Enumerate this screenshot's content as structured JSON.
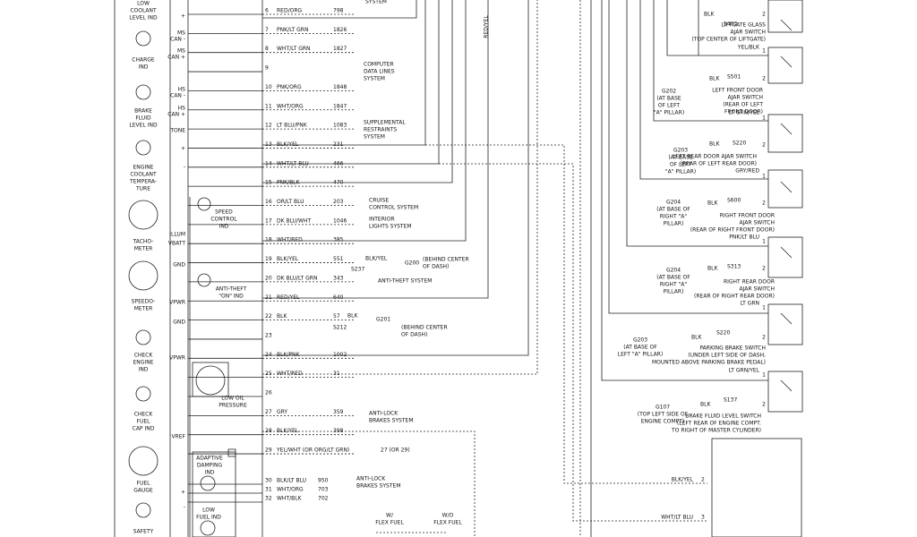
{
  "top_label": "SYSTEM",
  "vertical_label": "RED/YEL",
  "gauges": [
    {
      "lines": [
        "LOW",
        "COOLANT",
        "LEVEL IND"
      ]
    },
    {
      "lines": [
        "CHARGE",
        "IND"
      ]
    },
    {
      "lines": [
        "BRAKE",
        "FLUID",
        "LEVEL IND"
      ]
    },
    {
      "lines": [
        "ENGINE",
        "COOLANT",
        "TEMPERA-",
        "TURE"
      ]
    },
    {
      "lines": [
        "TACHO-",
        "METER"
      ]
    },
    {
      "lines": [
        "SPEEDO-",
        "METER"
      ]
    },
    {
      "lines": [
        "CHECK",
        "ENGINE",
        "IND"
      ]
    },
    {
      "lines": [
        "CHECK",
        "FUEL",
        "CAP IND"
      ]
    },
    {
      "lines": [
        "FUEL",
        "GAUGE"
      ]
    },
    {
      "lines": [
        "SAFETY"
      ]
    }
  ],
  "pin_labels": [
    {
      "lines": [
        "+"
      ]
    },
    {
      "lines": [
        "MS",
        "CAN -"
      ]
    },
    {
      "lines": [
        "MS",
        "CAN +"
      ]
    },
    {
      "lines": [
        "HS",
        "CAN -"
      ]
    },
    {
      "lines": [
        "HS",
        "CAN +"
      ]
    },
    {
      "lines": [
        "TONE"
      ]
    },
    {
      "lines": [
        "+"
      ]
    },
    {
      "lines": [
        "-"
      ]
    },
    {
      "lines": [
        "ILLUM"
      ]
    },
    {
      "lines": [
        "VBATT"
      ]
    },
    {
      "lines": [
        "GND"
      ]
    },
    {
      "lines": [
        "VPWR"
      ]
    },
    {
      "lines": [
        "GND"
      ]
    },
    {
      "lines": [
        "VPWR"
      ]
    },
    {
      "lines": [
        "VREF"
      ]
    },
    {
      "lines": [
        "+"
      ]
    },
    {
      "lines": [
        "-"
      ]
    }
  ],
  "components": [
    {
      "lines": [
        "SPEED",
        "CONTROL",
        "IND"
      ]
    },
    {
      "lines": [
        "ANTI-THEFT",
        "\"ON\" IND"
      ]
    },
    {
      "lines": [
        "LOW OIL",
        "PRESSURE"
      ]
    },
    {
      "lines": [
        "ADAPTIVE",
        "DAMPING",
        "IND"
      ]
    },
    {
      "lines": [
        "LOW",
        "FUEL IND"
      ]
    },
    {
      "lines": [
        "W/",
        "FLEX FUEL"
      ]
    },
    {
      "lines": [
        "W/O",
        "FLEX FUEL"
      ]
    }
  ],
  "rows": [
    {
      "pin": "6",
      "color": "RED/ORG",
      "circuit": "798"
    },
    {
      "pin": "7",
      "color": "PNK/LT GRN",
      "circuit": "1826"
    },
    {
      "pin": "8",
      "color": "WHT/LT GRN",
      "circuit": "1827"
    },
    {
      "pin": "9",
      "color": "",
      "circuit": ""
    },
    {
      "pin": "10",
      "color": "PNK/ORG",
      "circuit": "1848"
    },
    {
      "pin": "11",
      "color": "WHT/ORG",
      "circuit": "1847"
    },
    {
      "pin": "12",
      "color": "LT BLU/PNK",
      "circuit": "1083"
    },
    {
      "pin": "13",
      "color": "BLK/YEL",
      "circuit": "231"
    },
    {
      "pin": "14",
      "color": "WHT/LT BLU",
      "circuit": "466"
    },
    {
      "pin": "15",
      "color": "PNK/BLK",
      "circuit": "470"
    },
    {
      "pin": "16",
      "color": "OR/LT BLU",
      "circuit": "203"
    },
    {
      "pin": "17",
      "color": "DK BLU/WHT",
      "circuit": "1046"
    },
    {
      "pin": "18",
      "color": "WHT/RED",
      "circuit": "385"
    },
    {
      "pin": "19",
      "color": "BLK/YEL",
      "circuit": "551"
    },
    {
      "pin": "20",
      "color": "DK BLU/LT GRN",
      "circuit": "343"
    },
    {
      "pin": "21",
      "color": "RED/YEL",
      "circuit": "640"
    },
    {
      "pin": "22",
      "color": "BLK",
      "circuit": "57"
    },
    {
      "pin": "23",
      "color": "",
      "circuit": ""
    },
    {
      "pin": "24",
      "color": "BLK/PNK",
      "circuit": "1002"
    },
    {
      "pin": "25",
      "color": "WHT/RED",
      "circuit": "31"
    },
    {
      "pin": "26",
      "color": "",
      "circuit": ""
    },
    {
      "pin": "27",
      "color": "GRY",
      "circuit": "359"
    },
    {
      "pin": "28",
      "color": "BLK/YEL",
      "circuit": "398"
    },
    {
      "pin": "29",
      "color": "YEL/WHT   (OR ORG/LT GRN)",
      "circuit": "27 (OR 29)"
    },
    {
      "pin": "30",
      "color": "BLK/LT BLU",
      "circuit": "950"
    },
    {
      "pin": "31",
      "color": "WHT/ORG",
      "circuit": "703"
    },
    {
      "pin": "32",
      "color": "WHT/BLK",
      "circuit": "702"
    }
  ],
  "destinations": [
    {
      "lines": [
        "COMPUTER",
        "DATA LINES",
        "SYSTEM"
      ]
    },
    {
      "lines": [
        "SUPPLEMENTAL",
        "RESTRAINTS",
        "SYSTEM"
      ]
    },
    {
      "lines": [
        "CRUISE",
        "CONTROL SYSTEM"
      ]
    },
    {
      "lines": [
        "INTERIOR",
        "LIGHTS SYSTEM"
      ]
    },
    {
      "lines": [
        "ANTI-THEFT SYSTEM"
      ]
    },
    {
      "lines": [
        "ANTI-LOCK",
        "BRAKES SYSTEM"
      ]
    },
    {
      "lines": [
        "ANTI-LOCK",
        "BRAKES SYSTEM"
      ]
    }
  ],
  "splices": [
    {
      "wire": "BLK/YEL",
      "splice": "S237",
      "ground": "G200",
      "lines": [
        "(BEHIND CENTER",
        "OF DASH)"
      ]
    },
    {
      "wire": "BLK",
      "splice": "S212",
      "ground": "G201",
      "lines": [
        "(BEHIND CENTER",
        "OF DASH)"
      ]
    }
  ],
  "switches": [
    {
      "wire": "",
      "ground": "",
      "ground_lines": [],
      "blk": "BLK",
      "splice": "S403",
      "pins": [
        "2"
      ],
      "name": [
        "LIFTGATE GLASS",
        "AJAR SWITCH",
        "(TOP CENTER OF LIFTGATE)"
      ]
    },
    {
      "wire": "YEL/BLK",
      "ground": "G202",
      "ground_lines": [
        "(AT BASE",
        "OF LEFT",
        "\"A\" PILLAR)"
      ],
      "blk": "BLK",
      "splice": "S501",
      "pins": [
        "1",
        "2"
      ],
      "name": [
        "LEFT FRONT DOOR",
        "AJAR SWITCH",
        "(REAR OF LEFT",
        "FRONT DOOR)"
      ]
    },
    {
      "wire": "LT GRN/YEL",
      "ground": "G203",
      "ground_lines": [
        "(AT BASE",
        "OF LEFT",
        "\"A\" PILLAR)"
      ],
      "blk": "BLK",
      "splice": "S220",
      "pins": [
        "1",
        "2"
      ],
      "name": [
        "LEFT REAR DOOR AJAR SWITCH",
        "(REAR OF LEFT REAR DOOR)"
      ]
    },
    {
      "wire": "GRY/RED",
      "ground": "G204",
      "ground_lines": [
        "(AT BASE OF",
        "RIGHT \"A\"",
        "PILLAR)"
      ],
      "blk": "BLK",
      "splice": "S600",
      "pins": [
        "1",
        "2"
      ],
      "name": [
        "RIGHT FRONT DOOR",
        "AJAR SWITCH",
        "(REAR OF RIGHT FRONT DOOR)"
      ]
    },
    {
      "wire": "PNK/LT BLU",
      "ground": "G204",
      "ground_lines": [
        "(AT BASE OF",
        "RIGHT \"A\"",
        "PILLAR)"
      ],
      "blk": "BLK",
      "splice": "S313",
      "pins": [
        "1",
        "2"
      ],
      "name": [
        "RIGHT REAR DOOR",
        "AJAR SWITCH",
        "(REAR OF RIGHT REAR DOOR)"
      ]
    },
    {
      "wire": "LT GRN",
      "ground": "G203",
      "ground_lines": [
        "(AT BASE OF",
        "LEFT \"A\" PILLAR)"
      ],
      "blk": "BLK",
      "splice": "S220",
      "pins": [
        "1",
        "2"
      ],
      "name": [
        "PARKING BRAKE SWITCH",
        "(UNDER LEFT SIDE OF DASH,",
        "MOUNTED ABOVE PARKING BRAKE PEDAL)"
      ]
    },
    {
      "wire": "LT GRN/YEL",
      "ground": "G107",
      "ground_lines": [
        "(TOP LEFT SIDE OF",
        "ENGINE COMPT)"
      ],
      "blk": "BLK",
      "splice": "S137",
      "pins": [
        "1",
        "2"
      ],
      "name": [
        "BRAKE FLUID LEVEL SWITCH",
        "(LEFT REAR OF ENGINE COMPT.",
        "TO RIGHT OF MASTER CYLINDER)"
      ]
    }
  ],
  "bottom_wires": [
    {
      "wire": "BLK/YEL",
      "pin": "2"
    },
    {
      "wire": "WHT/LT BLU",
      "pin": "3"
    }
  ]
}
